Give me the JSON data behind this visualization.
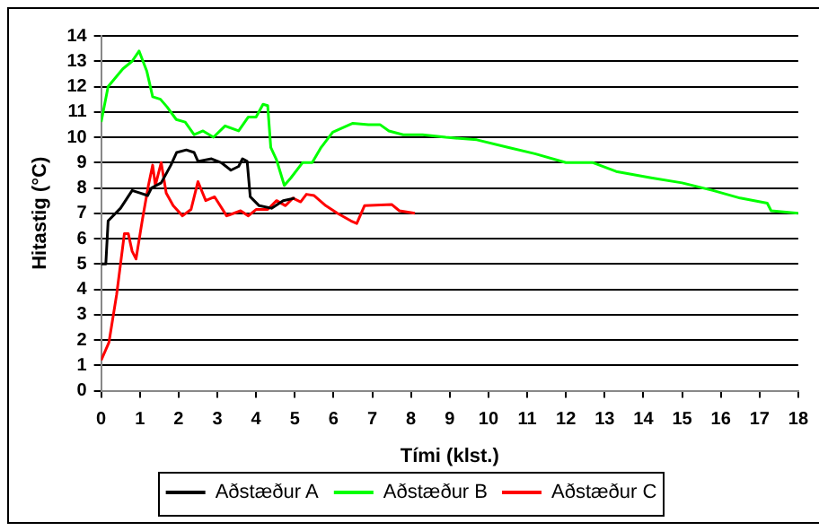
{
  "chart_data": {
    "type": "line",
    "xlabel": "Tími (klst.)",
    "ylabel": "Hitastig (°C)",
    "xlim": [
      0,
      18
    ],
    "xticks": [
      0,
      1,
      2,
      3,
      4,
      5,
      6,
      7,
      8,
      9,
      10,
      11,
      12,
      13,
      14,
      15,
      16,
      17,
      18
    ],
    "ylim": [
      0,
      14
    ],
    "yticks": [
      0,
      1,
      2,
      3,
      4,
      5,
      6,
      7,
      8,
      9,
      10,
      11,
      12,
      13,
      14
    ],
    "grid": "y",
    "legend": "bottom",
    "marker": "none",
    "line_style": "solid",
    "series": [
      {
        "name": "Aðstæður A",
        "color": "#000000",
        "x": [
          0,
          0.12,
          0.18,
          0.5,
          0.8,
          1.0,
          1.2,
          1.3,
          1.55,
          1.8,
          1.95,
          2.2,
          2.4,
          2.5,
          2.85,
          3.1,
          3.35,
          3.55,
          3.65,
          3.77,
          3.85,
          4.08,
          4.4,
          4.7,
          5.0
        ],
        "values": [
          5,
          5,
          6.7,
          7.2,
          7.9,
          7.8,
          7.7,
          8.0,
          8.2,
          8.9,
          9.4,
          9.5,
          9.4,
          9.05,
          9.15,
          9.0,
          8.7,
          8.85,
          9.15,
          9.05,
          7.65,
          7.3,
          7.2,
          7.5,
          7.6
        ]
      },
      {
        "name": "Aðstæður B",
        "color": "#00ff00",
        "x": [
          0,
          0.18,
          0.56,
          0.8,
          0.98,
          1.18,
          1.33,
          1.53,
          1.7,
          1.94,
          2.17,
          2.4,
          2.63,
          2.9,
          3.2,
          3.55,
          3.8,
          4.0,
          4.18,
          4.3,
          4.38,
          4.53,
          4.73,
          4.9,
          5.2,
          5.45,
          5.68,
          5.98,
          6.2,
          6.5,
          6.9,
          7.2,
          7.43,
          7.8,
          8.3,
          8.9,
          9.7,
          10.5,
          11.2,
          12.0,
          12.7,
          13.3,
          14.2,
          15.0,
          15.8,
          16.5,
          17.2,
          17.3,
          18
        ],
        "values": [
          10.6,
          12.0,
          12.7,
          13.0,
          13.4,
          12.6,
          11.6,
          11.5,
          11.2,
          10.7,
          10.6,
          10.1,
          10.25,
          10.0,
          10.45,
          10.25,
          10.8,
          10.8,
          11.3,
          11.25,
          9.6,
          9.1,
          8.1,
          8.4,
          9.0,
          9.0,
          9.6,
          10.2,
          10.35,
          10.55,
          10.5,
          10.5,
          10.25,
          10.1,
          10.1,
          10.0,
          9.9,
          9.6,
          9.35,
          9.0,
          9.0,
          8.65,
          8.4,
          8.2,
          7.9,
          7.6,
          7.4,
          7.1,
          7.0
        ]
      },
      {
        "name": "Aðstæður C",
        "color": "#ff0000",
        "x": [
          0,
          0.2,
          0.4,
          0.6,
          0.7,
          0.8,
          0.9,
          1.07,
          1.22,
          1.33,
          1.4,
          1.55,
          1.68,
          1.86,
          2.1,
          2.32,
          2.5,
          2.7,
          2.93,
          3.24,
          3.6,
          3.8,
          4.0,
          4.3,
          4.53,
          4.76,
          4.95,
          5.15,
          5.3,
          5.5,
          5.8,
          6.1,
          6.45,
          6.6,
          6.8,
          7.5,
          7.7,
          8.1
        ],
        "values": [
          1.2,
          1.9,
          3.8,
          6.2,
          6.2,
          5.5,
          5.2,
          6.8,
          8.1,
          8.9,
          8.1,
          9.0,
          7.8,
          7.3,
          6.9,
          7.15,
          8.25,
          7.5,
          7.65,
          6.9,
          7.1,
          6.9,
          7.15,
          7.15,
          7.5,
          7.3,
          7.6,
          7.45,
          7.75,
          7.7,
          7.3,
          7.0,
          6.7,
          6.6,
          7.3,
          7.35,
          7.1,
          7.0
        ]
      }
    ]
  }
}
